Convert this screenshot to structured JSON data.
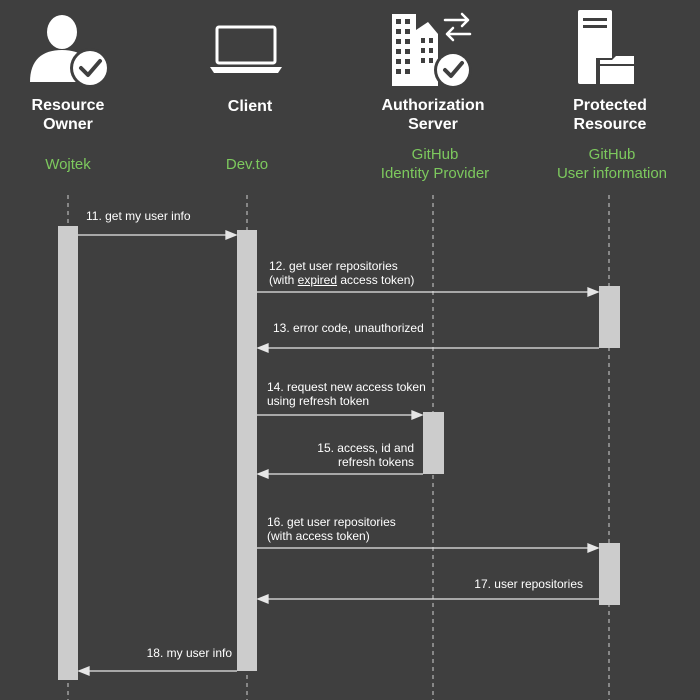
{
  "participants": [
    {
      "role": "Resource\nOwner",
      "party": "Wojtek",
      "icon": "user-check-icon"
    },
    {
      "role": "Client",
      "party": "Dev.to",
      "icon": "laptop-icon"
    },
    {
      "role": "Authorization\nServer",
      "party": "GitHub\nIdentity Provider",
      "icon": "building-exchange-check-icon"
    },
    {
      "role": "Protected\nResource",
      "party": "GitHub\nUser information",
      "icon": "server-folder-icon"
    }
  ],
  "messages": [
    {
      "lines": [
        "11. get  my user info"
      ]
    },
    {
      "lines": [
        "12. get user repositories",
        "(with expired access token)"
      ],
      "underline": "expired"
    },
    {
      "lines": [
        "13. error code, unauthorized"
      ]
    },
    {
      "lines": [
        "14. request new access token",
        "using refresh token"
      ]
    },
    {
      "lines": [
        "15. access, id and",
        "refresh tokens"
      ]
    },
    {
      "lines": [
        "16. get user repositories",
        "(with access token)"
      ]
    },
    {
      "lines": [
        "17. user repositories"
      ]
    },
    {
      "lines": [
        "18. my user info"
      ]
    }
  ],
  "colors": {
    "background": "#3f3f3f",
    "role_text": "#ffffff",
    "party_text": "#7dc95e",
    "lifeline": "#cfcfcf",
    "activation": "#cccccc",
    "arrow": "#e6e6e6",
    "icon": "#ffffff"
  }
}
